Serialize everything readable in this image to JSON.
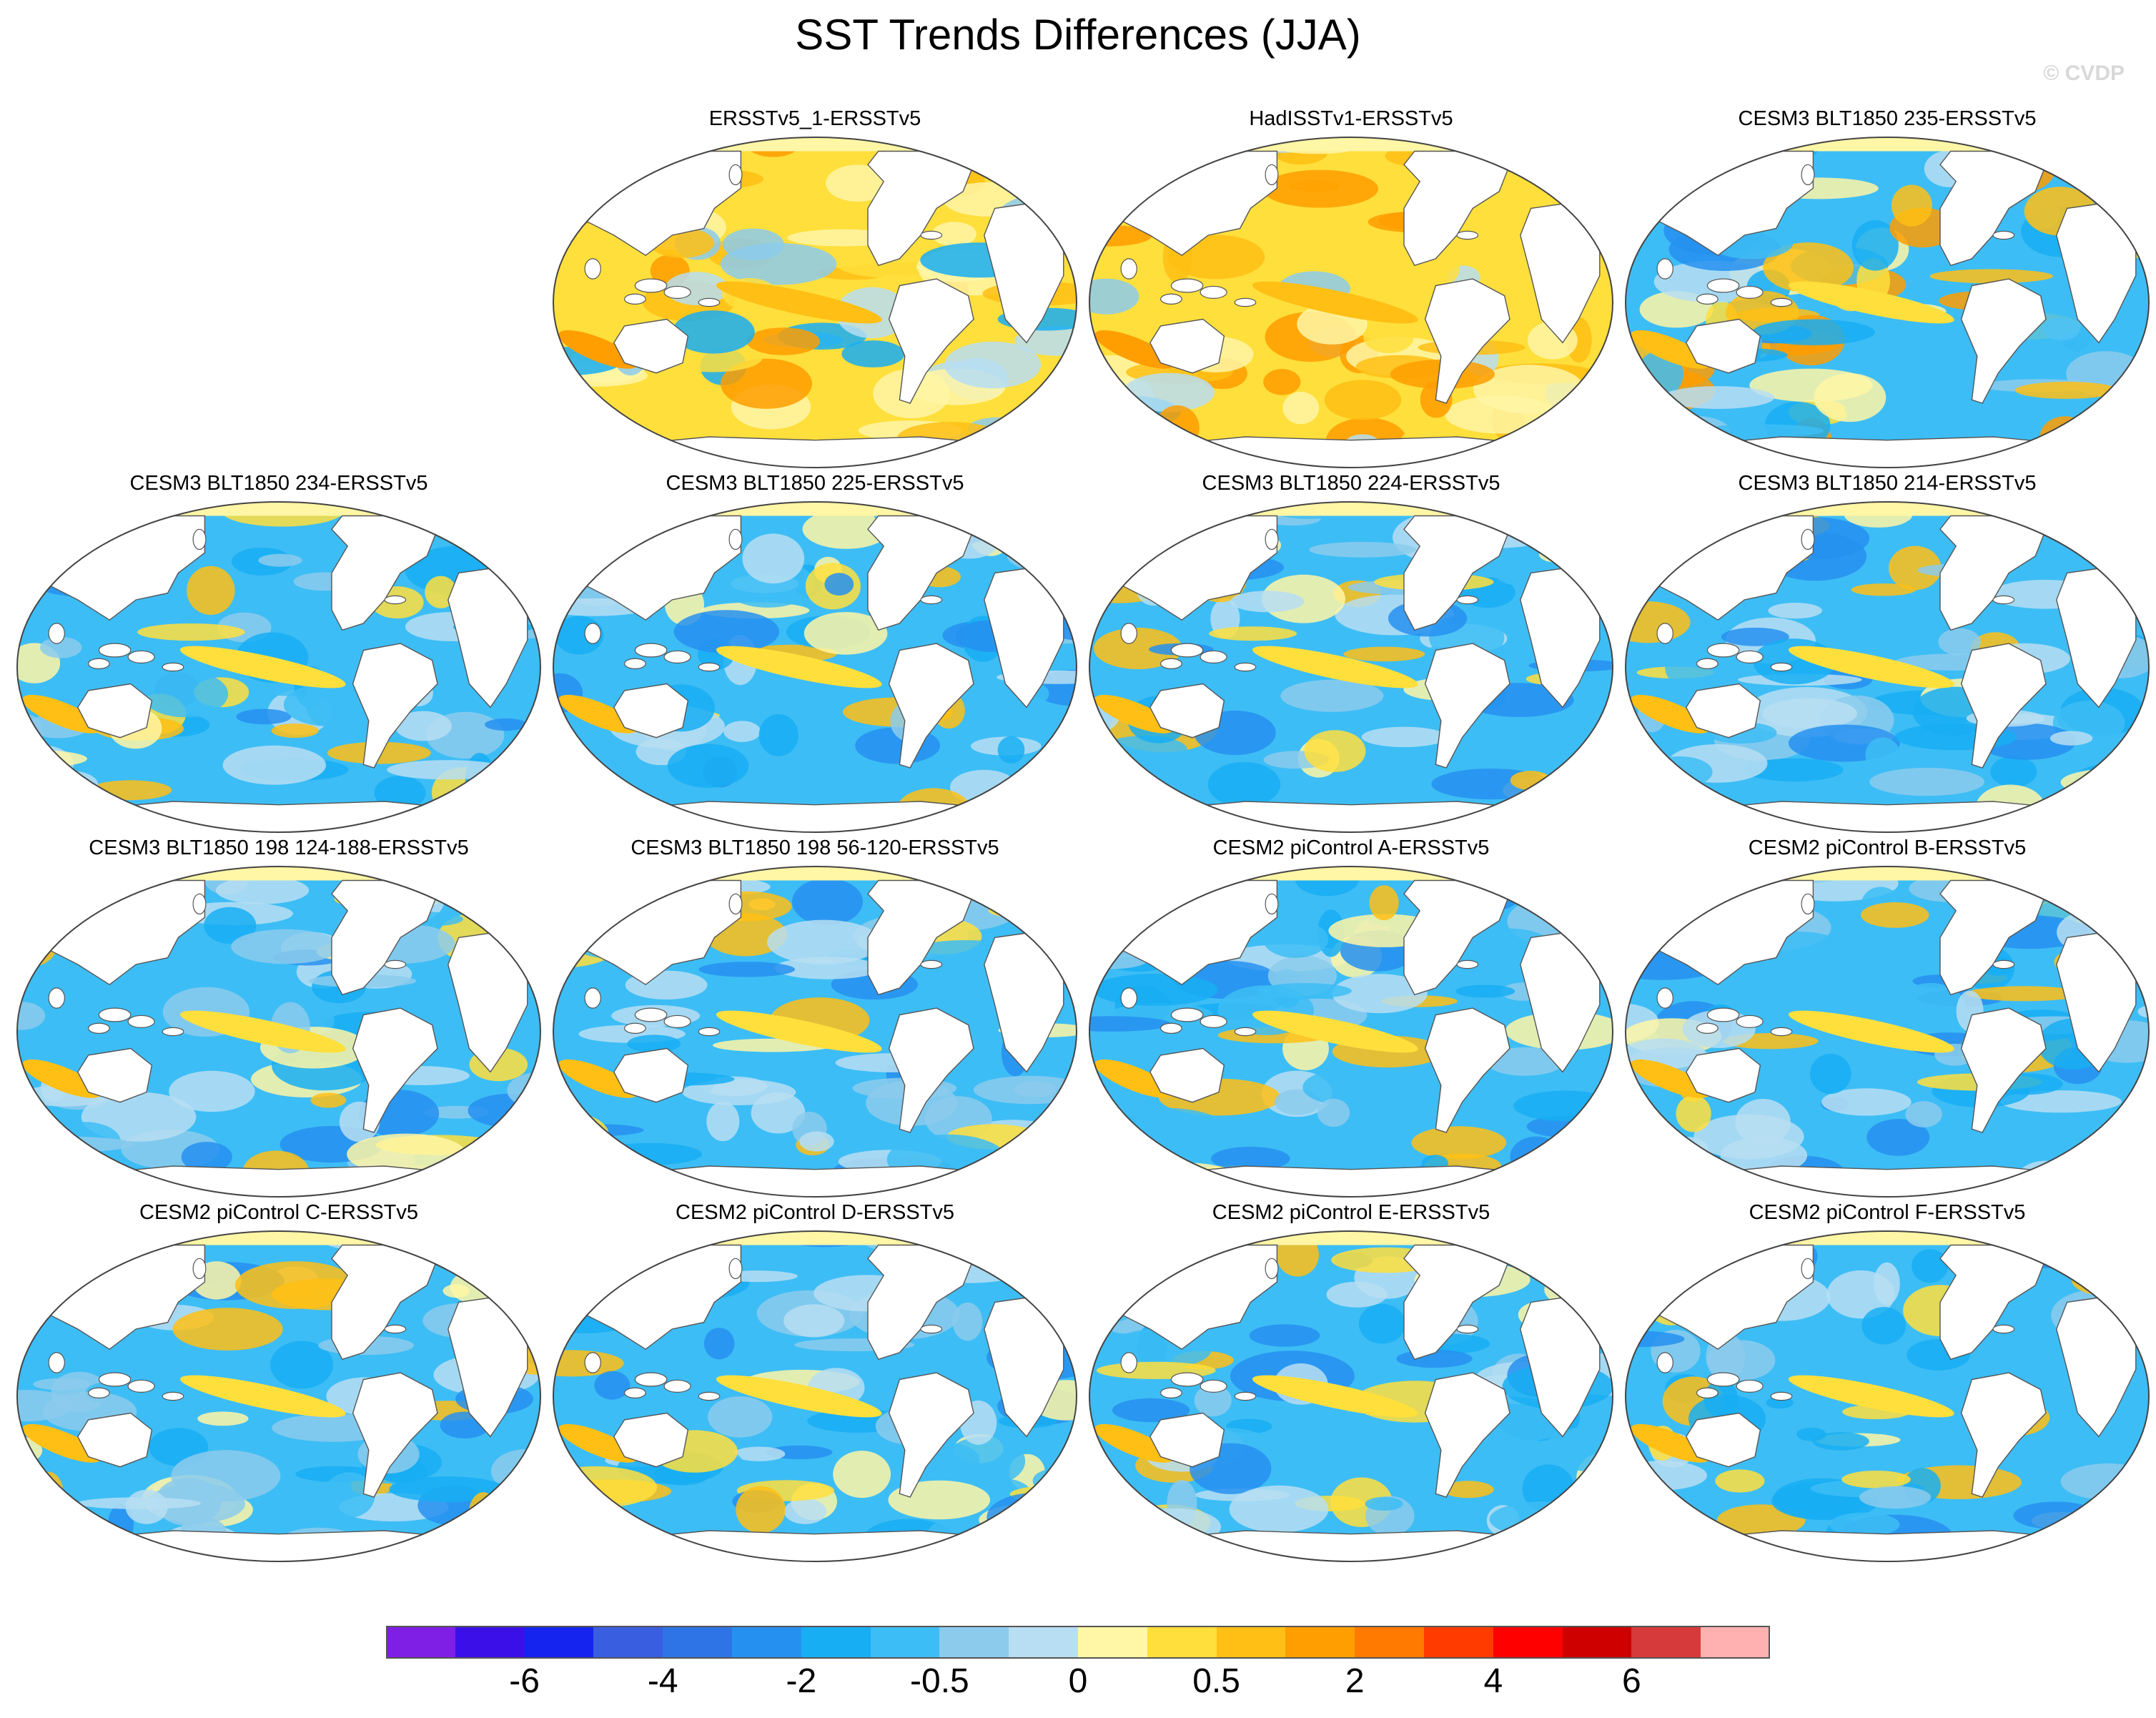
{
  "title": "SST Trends Differences (JJA)",
  "credit": "© CVDP",
  "panels": [
    {
      "title": "ERSSTv5_1-ERSSTv5",
      "pattern": "warm",
      "seed": 11
    },
    {
      "title": "HadISSTv1-ERSSTv5",
      "pattern": "warm",
      "seed": 23
    },
    {
      "title": "CESM3 BLT1850 235-ERSSTv5",
      "pattern": "warmmix",
      "seed": 37
    },
    {
      "title": "CESM3 BLT1850 234-ERSSTv5",
      "pattern": "cool",
      "seed": 41
    },
    {
      "title": "CESM3 BLT1850 225-ERSSTv5",
      "pattern": "cool",
      "seed": 53
    },
    {
      "title": "CESM3 BLT1850 224-ERSSTv5",
      "pattern": "cool",
      "seed": 67
    },
    {
      "title": "CESM3 BLT1850 214-ERSSTv5",
      "pattern": "cool",
      "seed": 71
    },
    {
      "title": "CESM3 BLT1850 198 124-188-ERSSTv5",
      "pattern": "cool",
      "seed": 83
    },
    {
      "title": "CESM3 BLT1850 198 56-120-ERSSTv5",
      "pattern": "cool",
      "seed": 97
    },
    {
      "title": "CESM2 piControl A-ERSSTv5",
      "pattern": "cool",
      "seed": 101
    },
    {
      "title": "CESM2 piControl B-ERSSTv5",
      "pattern": "cool",
      "seed": 113
    },
    {
      "title": "CESM2 piControl C-ERSSTv5",
      "pattern": "cool",
      "seed": 127
    },
    {
      "title": "CESM2 piControl D-ERSSTv5",
      "pattern": "cool",
      "seed": 131
    },
    {
      "title": "CESM2 piControl E-ERSSTv5",
      "pattern": "cool",
      "seed": 149
    },
    {
      "title": "CESM2 piControl F-ERSSTv5",
      "pattern": "cool",
      "seed": 157
    }
  ],
  "colorbar": {
    "colors": [
      "#7f1fe6",
      "#3b10e8",
      "#1524ee",
      "#3a5ee0",
      "#2f74e6",
      "#2690f0",
      "#18aef3",
      "#3dbdf5",
      "#8ccbec",
      "#b7def2",
      "#fff6a6",
      "#ffdf3c",
      "#ffbf14",
      "#ff9e00",
      "#ff7a00",
      "#ff3b00",
      "#ff0000",
      "#cf0000",
      "#d63a3a",
      "#ffb1b1"
    ],
    "tick_labels": [
      "-6",
      "-4",
      "-2",
      "-0.5",
      "0",
      "0.5",
      "2",
      "4",
      "6"
    ]
  }
}
